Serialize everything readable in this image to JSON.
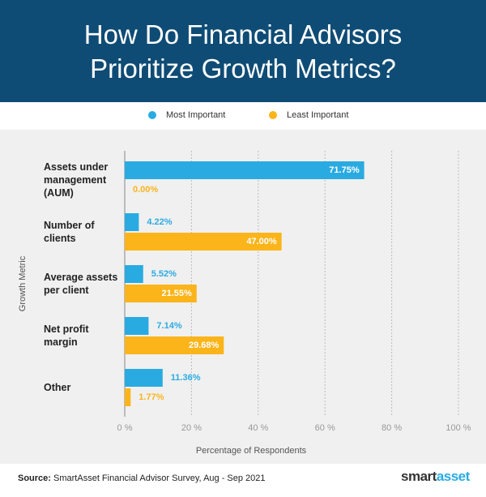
{
  "chart_data": {
    "type": "hbar",
    "title": "How Do Financial Advisors Prioritize Growth Metrics?",
    "categories": [
      "Assets under management (AUM)",
      "Number of clients",
      "Average assets per client",
      "Net profit margin",
      "Other"
    ],
    "series": [
      {
        "name": "Most Important",
        "color": "#29abe2",
        "values": [
          71.75,
          4.22,
          5.52,
          7.14,
          11.36
        ],
        "value_labels": [
          "71.75%",
          "4.22%",
          "5.52%",
          "7.14%",
          "11.36%"
        ]
      },
      {
        "name": "Least Important",
        "color": "#fbb41a",
        "values": [
          0,
          47,
          21.55,
          29.68,
          1.77
        ],
        "value_labels": [
          "0.00%",
          "47.00%",
          "21.55%",
          "29.68%",
          "1.77%"
        ]
      }
    ],
    "xlim": [
      0,
      100
    ],
    "xticks": [
      {
        "value": 0,
        "label": "0 %"
      },
      {
        "value": 20,
        "label": "20 %"
      },
      {
        "value": 40,
        "label": "40 %"
      },
      {
        "value": 60,
        "label": "60 %"
      },
      {
        "value": 80,
        "label": "80 %"
      },
      {
        "value": 100,
        "label": "100 %"
      }
    ],
    "xlabel": "Percentage of Respondents",
    "ylabel": "Growth Metric",
    "grid": true,
    "source_label": "Source:",
    "source": "SmartAsset Financial Advisor Survey, Aug - Sep 2021",
    "logo": [
      "smart",
      "asset"
    ]
  }
}
